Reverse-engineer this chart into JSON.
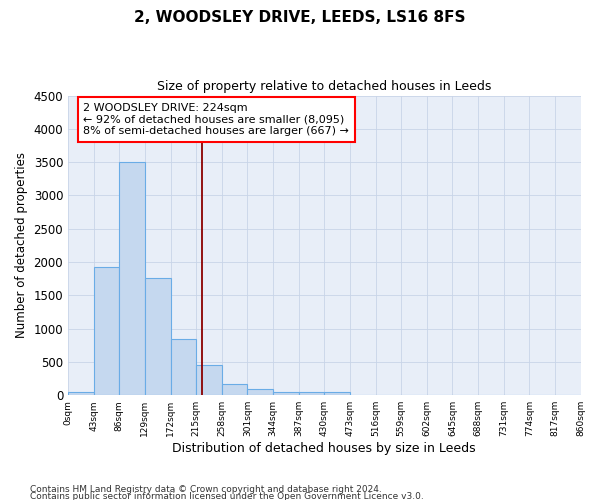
{
  "title": "2, WOODSLEY DRIVE, LEEDS, LS16 8FS",
  "subtitle": "Size of property relative to detached houses in Leeds",
  "xlabel": "Distribution of detached houses by size in Leeds",
  "ylabel": "Number of detached properties",
  "footer_line1": "Contains HM Land Registry data © Crown copyright and database right 2024.",
  "footer_line2": "Contains public sector information licensed under the Open Government Licence v3.0.",
  "bin_labels": [
    "0sqm",
    "43sqm",
    "86sqm",
    "129sqm",
    "172sqm",
    "215sqm",
    "258sqm",
    "301sqm",
    "344sqm",
    "387sqm",
    "430sqm",
    "473sqm",
    "516sqm",
    "559sqm",
    "602sqm",
    "645sqm",
    "688sqm",
    "731sqm",
    "774sqm",
    "817sqm",
    "860sqm"
  ],
  "bar_heights": [
    50,
    1920,
    3500,
    1760,
    840,
    450,
    175,
    90,
    50,
    50,
    50,
    0,
    0,
    0,
    0,
    0,
    0,
    0,
    0,
    0
  ],
  "bar_color": "#c5d8ef",
  "bar_edge_color": "#6aace6",
  "ylim": [
    0,
    4500
  ],
  "yticks": [
    0,
    500,
    1000,
    1500,
    2000,
    2500,
    3000,
    3500,
    4000,
    4500
  ],
  "property_label": "2 WOODSLEY DRIVE: 224sqm",
  "annotation_line1": "← 92% of detached houses are smaller (8,095)",
  "annotation_line2": "8% of semi-detached houses are larger (667) →",
  "vline_x": 5.21,
  "bg_color": "#e8eef8",
  "grid_color": "#c8d4e8"
}
